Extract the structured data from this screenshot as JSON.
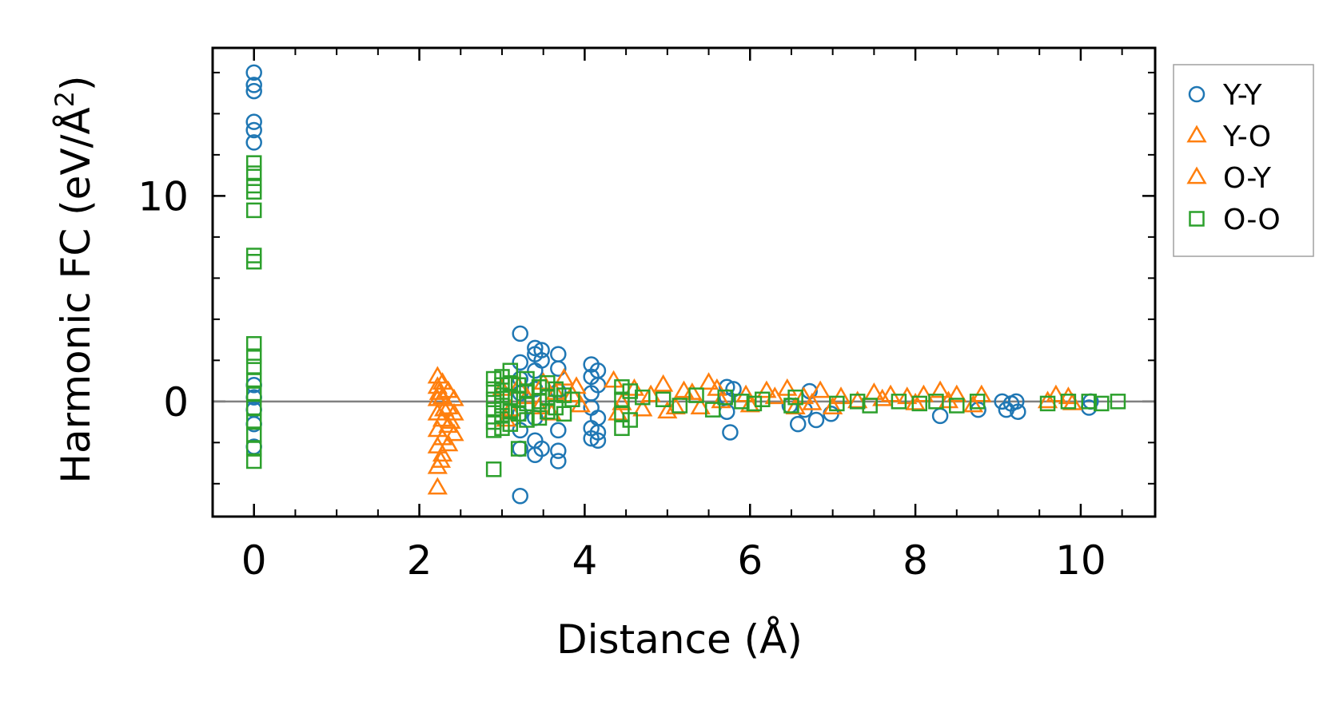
{
  "chart_data": {
    "type": "scatter",
    "xlabel": "Distance (Å)",
    "ylabel_main": "Harmonic FC (eV/Å",
    "ylabel_sup": "2",
    "ylabel_close": ")",
    "xlim": [
      -0.5,
      10.9
    ],
    "ylim": [
      -5.6,
      17.2
    ],
    "xticks": [
      0,
      2,
      4,
      6,
      8,
      10
    ],
    "xtick_labels": [
      "0",
      "2",
      "4",
      "6",
      "8",
      "10"
    ],
    "yticks": [
      0,
      10
    ],
    "ytick_labels": [
      "0",
      "10"
    ],
    "x_minor_step": 0.5,
    "y_minor_step": 2,
    "zero_line": true,
    "legend_position": "outside-right-top",
    "series": [
      {
        "name": "Y-Y",
        "marker": "circle",
        "color": "#1f77b4",
        "points": [
          [
            0,
            16.0
          ],
          [
            0,
            15.4
          ],
          [
            0,
            15.1
          ],
          [
            0,
            13.6
          ],
          [
            0,
            13.2
          ],
          [
            0,
            12.6
          ],
          [
            0,
            0.8
          ],
          [
            0,
            0.2
          ],
          [
            0,
            -0.4
          ],
          [
            0,
            -1.1
          ],
          [
            0,
            -2.2
          ],
          [
            3.22,
            3.3
          ],
          [
            3.22,
            1.9
          ],
          [
            3.22,
            1.1
          ],
          [
            3.22,
            0.4
          ],
          [
            3.22,
            -0.6
          ],
          [
            3.22,
            -1.4
          ],
          [
            3.22,
            -2.3
          ],
          [
            3.22,
            -4.6
          ],
          [
            3.4,
            2.6
          ],
          [
            3.4,
            2.3
          ],
          [
            3.4,
            1.5
          ],
          [
            3.4,
            0.6
          ],
          [
            3.4,
            -0.8
          ],
          [
            3.4,
            -1.9
          ],
          [
            3.4,
            -2.6
          ],
          [
            3.48,
            2.5
          ],
          [
            3.48,
            2.0
          ],
          [
            3.48,
            -2.3
          ],
          [
            3.68,
            2.3
          ],
          [
            3.68,
            1.6
          ],
          [
            3.68,
            0.5
          ],
          [
            3.68,
            -1.4
          ],
          [
            3.68,
            -2.4
          ],
          [
            3.68,
            -2.9
          ],
          [
            4.08,
            1.8
          ],
          [
            4.08,
            1.2
          ],
          [
            4.08,
            0.4
          ],
          [
            4.08,
            -0.3
          ],
          [
            4.08,
            -1.3
          ],
          [
            4.08,
            -1.8
          ],
          [
            4.16,
            1.5
          ],
          [
            4.16,
            0.8
          ],
          [
            4.16,
            -0.8
          ],
          [
            4.16,
            -1.5
          ],
          [
            4.16,
            -1.9
          ],
          [
            5.72,
            0.7
          ],
          [
            5.72,
            0.2
          ],
          [
            5.72,
            -0.5
          ],
          [
            5.76,
            -1.5
          ],
          [
            5.8,
            0.6
          ],
          [
            6.48,
            -0.2
          ],
          [
            6.58,
            -1.1
          ],
          [
            6.66,
            -0.4
          ],
          [
            6.72,
            0.5
          ],
          [
            6.8,
            -0.9
          ],
          [
            6.98,
            -0.6
          ],
          [
            8.3,
            -0.7
          ],
          [
            8.76,
            -0.4
          ],
          [
            9.05,
            0.0
          ],
          [
            9.1,
            -0.4
          ],
          [
            9.16,
            -0.1
          ],
          [
            9.22,
            0.0
          ],
          [
            9.24,
            -0.5
          ],
          [
            10.1,
            -0.3
          ],
          [
            10.12,
            0.0
          ]
        ]
      },
      {
        "name": "Y-O",
        "marker": "triangle",
        "color": "#ff7f0e",
        "points": [
          [
            2.22,
            1.2
          ],
          [
            2.22,
            0.7
          ],
          [
            2.22,
            0.1
          ],
          [
            2.22,
            -0.6
          ],
          [
            2.22,
            -1.4
          ],
          [
            2.22,
            -2.2
          ],
          [
            2.22,
            -3.2
          ],
          [
            2.22,
            -4.2
          ],
          [
            2.28,
            0.9
          ],
          [
            2.28,
            0.2
          ],
          [
            2.28,
            -0.9
          ],
          [
            2.28,
            -1.8
          ],
          [
            2.28,
            -2.6
          ],
          [
            2.35,
            0.5
          ],
          [
            2.35,
            -0.3
          ],
          [
            2.35,
            -1.2
          ],
          [
            2.35,
            -2.1
          ],
          [
            2.42,
            0.1
          ],
          [
            2.42,
            -0.6
          ],
          [
            2.42,
            -1.6
          ],
          [
            3.0,
            0.6
          ],
          [
            3.1,
            -0.4
          ],
          [
            3.3,
            0.2
          ],
          [
            3.5,
            0.9
          ],
          [
            3.6,
            -0.6
          ],
          [
            3.75,
            1.1
          ],
          [
            3.85,
            0.3
          ],
          [
            3.95,
            -0.2
          ],
          [
            4.35,
            1.0
          ],
          [
            4.45,
            -0.1
          ],
          [
            4.6,
            0.6
          ],
          [
            4.8,
            0.3
          ],
          [
            4.95,
            0.8
          ],
          [
            5.1,
            -0.3
          ],
          [
            5.3,
            0.4
          ],
          [
            5.5,
            0.9
          ],
          [
            5.65,
            0.0
          ],
          [
            5.95,
            0.3
          ],
          [
            6.2,
            0.5
          ],
          [
            6.45,
            0.6
          ],
          [
            6.65,
            0.2
          ],
          [
            6.85,
            0.5
          ],
          [
            7.1,
            0.2
          ],
          [
            7.5,
            0.4
          ],
          [
            7.7,
            0.3
          ],
          [
            7.9,
            0.2
          ],
          [
            8.1,
            0.3
          ],
          [
            8.3,
            0.5
          ],
          [
            8.5,
            0.3
          ],
          [
            8.8,
            0.3
          ],
          [
            9.7,
            0.3
          ],
          [
            9.85,
            0.2
          ]
        ]
      },
      {
        "name": "O-Y",
        "marker": "triangle",
        "color": "#ff7f0e",
        "points": [
          [
            2.24,
            0.4
          ],
          [
            2.3,
            -0.4
          ],
          [
            2.38,
            -1.0
          ],
          [
            2.26,
            -2.9
          ],
          [
            3.05,
            -0.9
          ],
          [
            3.2,
            0.7
          ],
          [
            3.45,
            -0.3
          ],
          [
            3.65,
            0.4
          ],
          [
            3.9,
            0.7
          ],
          [
            4.4,
            -0.6
          ],
          [
            4.7,
            -0.4
          ],
          [
            5.0,
            -0.5
          ],
          [
            5.2,
            0.5
          ],
          [
            5.4,
            -0.3
          ],
          [
            5.6,
            0.6
          ],
          [
            6.0,
            -0.2
          ],
          [
            6.3,
            0.2
          ],
          [
            6.55,
            -0.3
          ],
          [
            6.75,
            -0.1
          ],
          [
            7.0,
            -0.3
          ],
          [
            7.3,
            0.0
          ],
          [
            7.6,
            0.1
          ],
          [
            8.0,
            -0.1
          ],
          [
            8.4,
            0.0
          ],
          [
            8.7,
            -0.2
          ],
          [
            9.6,
            0.0
          ],
          [
            9.9,
            -0.1
          ]
        ]
      },
      {
        "name": "O-O",
        "marker": "square",
        "color": "#2ca02c",
        "points": [
          [
            0,
            11.6
          ],
          [
            0,
            11.1
          ],
          [
            0,
            10.5
          ],
          [
            0,
            10.2
          ],
          [
            0,
            9.3
          ],
          [
            0,
            7.1
          ],
          [
            0,
            6.8
          ],
          [
            0,
            2.8
          ],
          [
            0,
            2.2
          ],
          [
            0,
            1.7
          ],
          [
            0,
            1.0
          ],
          [
            0,
            0.4
          ],
          [
            0,
            -0.3
          ],
          [
            0,
            -1.0
          ],
          [
            0,
            -1.6
          ],
          [
            0,
            -2.3
          ],
          [
            0,
            -2.9
          ],
          [
            2.9,
            1.1
          ],
          [
            2.9,
            0.6
          ],
          [
            2.9,
            0.1
          ],
          [
            2.9,
            -0.4
          ],
          [
            2.9,
            -1.0
          ],
          [
            2.9,
            -1.4
          ],
          [
            2.9,
            -3.3
          ],
          [
            3.0,
            1.2
          ],
          [
            3.0,
            0.8
          ],
          [
            3.0,
            0.3
          ],
          [
            3.0,
            -0.2
          ],
          [
            3.0,
            -0.7
          ],
          [
            3.0,
            -1.3
          ],
          [
            3.1,
            1.5
          ],
          [
            3.1,
            0.9
          ],
          [
            3.1,
            0.2
          ],
          [
            3.1,
            -0.5
          ],
          [
            3.1,
            -1.1
          ],
          [
            3.2,
            0.8
          ],
          [
            3.2,
            0.1
          ],
          [
            3.2,
            -0.6
          ],
          [
            3.2,
            -2.3
          ],
          [
            3.3,
            1.1
          ],
          [
            3.3,
            0.5
          ],
          [
            3.3,
            -0.1
          ],
          [
            3.3,
            -0.9
          ],
          [
            3.45,
            0.7
          ],
          [
            3.45,
            0.0
          ],
          [
            3.45,
            -0.8
          ],
          [
            3.55,
            0.9
          ],
          [
            3.55,
            0.2
          ],
          [
            3.55,
            -0.5
          ],
          [
            3.65,
            0.6
          ],
          [
            3.65,
            -0.3
          ],
          [
            3.75,
            0.3
          ],
          [
            3.75,
            -0.6
          ],
          [
            3.85,
            0.1
          ],
          [
            4.45,
            0.7
          ],
          [
            4.45,
            0.1
          ],
          [
            4.45,
            -0.6
          ],
          [
            4.45,
            -1.3
          ],
          [
            4.55,
            0.5
          ],
          [
            4.55,
            -0.9
          ],
          [
            4.7,
            0.2
          ],
          [
            4.95,
            0.1
          ],
          [
            5.15,
            -0.2
          ],
          [
            5.35,
            0.3
          ],
          [
            5.55,
            -0.4
          ],
          [
            5.7,
            0.2
          ],
          [
            5.9,
            0.0
          ],
          [
            6.05,
            -0.1
          ],
          [
            6.15,
            0.1
          ],
          [
            6.5,
            -0.2
          ],
          [
            6.55,
            0.2
          ],
          [
            7.05,
            -0.1
          ],
          [
            7.3,
            0.0
          ],
          [
            7.45,
            -0.2
          ],
          [
            7.8,
            0.0
          ],
          [
            8.05,
            -0.1
          ],
          [
            8.25,
            0.0
          ],
          [
            8.5,
            -0.2
          ],
          [
            8.75,
            0.0
          ],
          [
            9.6,
            -0.1
          ],
          [
            9.85,
            0.0
          ],
          [
            10.1,
            0.0
          ],
          [
            10.25,
            -0.1
          ],
          [
            10.45,
            0.0
          ]
        ]
      }
    ]
  }
}
